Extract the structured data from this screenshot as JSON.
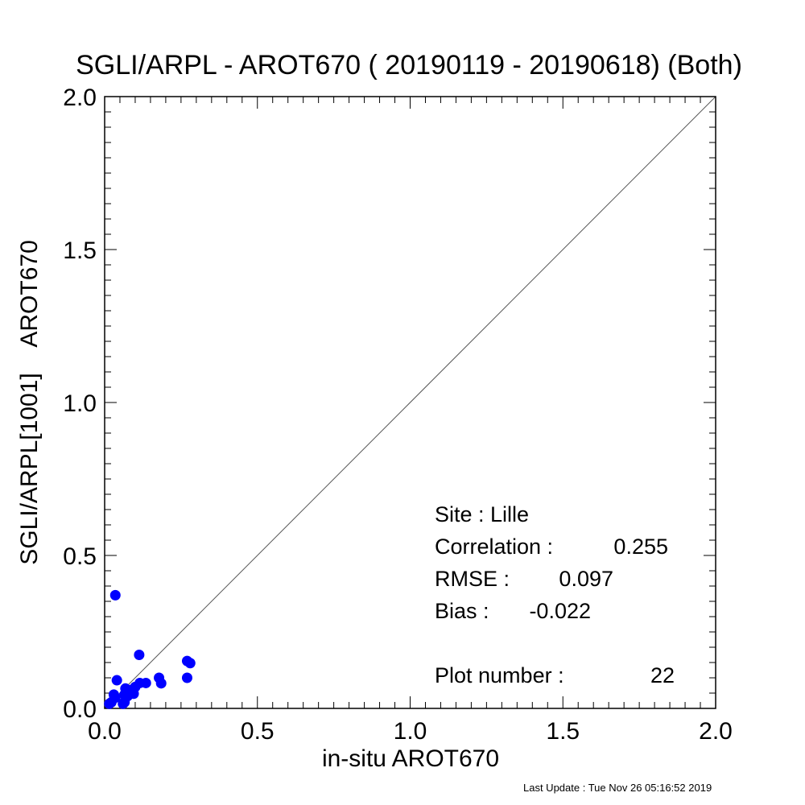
{
  "chart_data": {
    "type": "scatter",
    "title": "SGLI/ARPL - AROT670 ( 20190119 - 20190618) (Both)",
    "xlabel": "in-situ AROT670",
    "ylabel": "SGLI/ARPL[1001]    AROT670",
    "xlim": [
      0.0,
      2.0
    ],
    "ylim": [
      0.0,
      2.0
    ],
    "xticks": [
      "0.0",
      "0.5",
      "1.0",
      "1.5",
      "2.0"
    ],
    "yticks": [
      "0.0",
      "0.5",
      "1.0",
      "1.5",
      "2.0"
    ],
    "grid": false,
    "reference_line": "1:1",
    "marker_color": "#0000ff",
    "points": [
      {
        "x": 0.035,
        "y": 0.37
      },
      {
        "x": 0.113,
        "y": 0.175
      },
      {
        "x": 0.27,
        "y": 0.155
      },
      {
        "x": 0.28,
        "y": 0.148
      },
      {
        "x": 0.27,
        "y": 0.1
      },
      {
        "x": 0.178,
        "y": 0.1
      },
      {
        "x": 0.185,
        "y": 0.082
      },
      {
        "x": 0.04,
        "y": 0.092
      },
      {
        "x": 0.115,
        "y": 0.083
      },
      {
        "x": 0.135,
        "y": 0.083
      },
      {
        "x": 0.1,
        "y": 0.07
      },
      {
        "x": 0.068,
        "y": 0.065
      },
      {
        "x": 0.08,
        "y": 0.06
      },
      {
        "x": 0.095,
        "y": 0.048
      },
      {
        "x": 0.065,
        "y": 0.045
      },
      {
        "x": 0.075,
        "y": 0.04
      },
      {
        "x": 0.03,
        "y": 0.045
      },
      {
        "x": 0.035,
        "y": 0.035
      },
      {
        "x": 0.022,
        "y": 0.02
      },
      {
        "x": 0.015,
        "y": 0.015
      },
      {
        "x": 0.065,
        "y": 0.02
      },
      {
        "x": 0.06,
        "y": 0.015
      }
    ],
    "annotations": {
      "site": "Site : Lille",
      "correlation_label": "Correlation :",
      "correlation_value": "0.255",
      "rmse_label": "RMSE :",
      "rmse_value": "0.097",
      "bias_label": "Bias :",
      "bias_value": "-0.022",
      "plot_number_label": "Plot number :",
      "plot_number_value": "22"
    }
  },
  "footer": "Last Update : Tue Nov 26 05:16:52 2019"
}
